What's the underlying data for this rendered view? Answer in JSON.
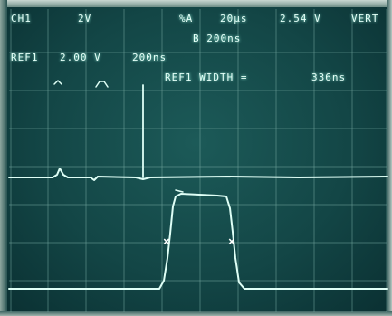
{
  "readouts": {
    "ch1_label": "CH1",
    "ch1_volts": "2V",
    "timebase_symbol": "%A",
    "timebase_value": "20µs",
    "cursor_value": "2.54 V",
    "cursor_mode": "VERT",
    "delayed_timebase": "B 200ns",
    "ref1_label": "REF1",
    "ref1_volts": "2.00 V",
    "ref1_timebase": "200ns",
    "ref1_width_label": "REF1 WIDTH =",
    "ref1_width_value": "336ns"
  },
  "cursor_markers": [
    "×",
    "×"
  ],
  "colors": {
    "trace": "#dffff6",
    "grid": "#6fa39b",
    "screen": "#134646"
  }
}
